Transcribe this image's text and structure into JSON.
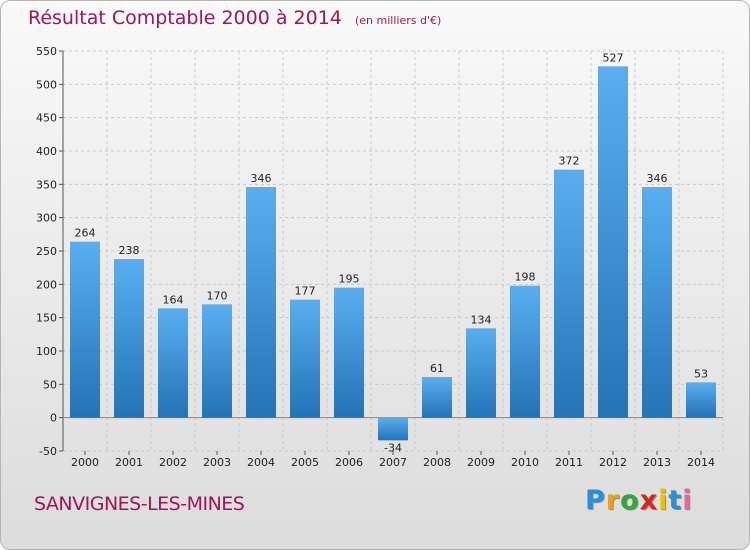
{
  "chart_data": {
    "type": "bar",
    "title": "Résultat Comptable 2000 à 2014",
    "subtitle": "(en milliers d'€)",
    "categories": [
      "2000",
      "2001",
      "2002",
      "2003",
      "2004",
      "2005",
      "2006",
      "2007",
      "2008",
      "2009",
      "2010",
      "2011",
      "2012",
      "2013",
      "2014"
    ],
    "values": [
      264,
      238,
      164,
      170,
      346,
      177,
      195,
      -34,
      61,
      134,
      198,
      372,
      527,
      346,
      53
    ],
    "ylim": [
      -50,
      550
    ],
    "yticks": [
      -50,
      0,
      50,
      100,
      150,
      200,
      250,
      300,
      350,
      400,
      450,
      500,
      550
    ],
    "grid": true,
    "xlabel": "",
    "ylabel": "",
    "colors": {
      "bar_light": "#5aaef0",
      "bar_dark": "#2373b5",
      "title": "#a0145a"
    }
  },
  "commune": "SANVIGNES-LES-MINES",
  "logo": {
    "letters": [
      "P",
      "r",
      "o",
      "x",
      "i",
      "t",
      "i"
    ],
    "colors": [
      "#2a8ee0",
      "#e8a020",
      "#2fa83a",
      "#d8261d",
      "#e8c200",
      "#2a8ee0",
      "#e06aa0"
    ]
  }
}
